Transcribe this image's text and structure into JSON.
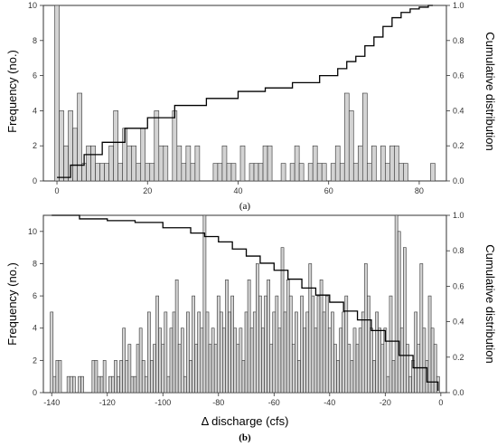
{
  "chart_data": [
    {
      "type": "bar",
      "panel_label": "(a)",
      "xlabel": "",
      "ylabel": "Frequency (no.)",
      "y2label": "Cumulative distribution",
      "xlim": [
        -3,
        86
      ],
      "ylim": [
        0,
        10
      ],
      "y2lim": [
        0,
        1
      ],
      "xticks": [
        0,
        20,
        40,
        60,
        80
      ],
      "yticks": [
        0,
        2,
        4,
        6,
        8,
        10
      ],
      "y2ticks": [
        "0.0",
        "0.2",
        "0.4",
        "0.6",
        "0.8",
        "1.0"
      ],
      "bin_width": 1,
      "x": [
        0,
        1,
        2,
        3,
        4,
        5,
        6,
        7,
        8,
        9,
        10,
        11,
        12,
        13,
        14,
        15,
        16,
        17,
        18,
        19,
        20,
        21,
        22,
        23,
        24,
        25,
        26,
        27,
        28,
        29,
        30,
        31,
        32,
        33,
        34,
        35,
        36,
        37,
        38,
        39,
        40,
        41,
        42,
        43,
        44,
        45,
        46,
        47,
        48,
        49,
        50,
        51,
        52,
        53,
        54,
        55,
        56,
        57,
        58,
        59,
        60,
        61,
        62,
        63,
        64,
        65,
        66,
        67,
        68,
        69,
        70,
        71,
        72,
        73,
        74,
        75,
        76,
        77,
        78,
        79,
        80,
        81,
        82,
        83
      ],
      "values": [
        10,
        4,
        2,
        4,
        3,
        5,
        1,
        2,
        2,
        1,
        1,
        1,
        2,
        4,
        1,
        3,
        2,
        2,
        1,
        3,
        1,
        1,
        4,
        2,
        2,
        0,
        4,
        2,
        1,
        2,
        1,
        2,
        0,
        0,
        0,
        1,
        1,
        2,
        1,
        1,
        0,
        2,
        0,
        1,
        1,
        1,
        2,
        2,
        0,
        0,
        1,
        0,
        1,
        2,
        1,
        0,
        1,
        2,
        1,
        1,
        0,
        1,
        2,
        1,
        5,
        4,
        1,
        2,
        5,
        1,
        2,
        0,
        2,
        1,
        2,
        2,
        1,
        1,
        0,
        0,
        0,
        0,
        0,
        1
      ],
      "cumulative": {
        "x": [
          0,
          3,
          6,
          10,
          15,
          20,
          26,
          33,
          40,
          46,
          52,
          58,
          62,
          64,
          66,
          68,
          70,
          72,
          74,
          76,
          78,
          80,
          82,
          83
        ],
        "y": [
          0.02,
          0.09,
          0.15,
          0.22,
          0.3,
          0.36,
          0.43,
          0.47,
          0.51,
          0.53,
          0.56,
          0.6,
          0.64,
          0.68,
          0.71,
          0.77,
          0.82,
          0.88,
          0.93,
          0.96,
          0.98,
          0.99,
          1.0,
          1.0
        ]
      }
    },
    {
      "type": "bar",
      "panel_label": "(b)",
      "xlabel": "Δ discharge (cfs)",
      "ylabel": "Frequency (no.)",
      "y2label": "Cumulative distribution",
      "xlim": [
        -143,
        2
      ],
      "ylim": [
        0,
        11
      ],
      "y2lim": [
        0,
        1
      ],
      "xticks": [
        -140,
        -120,
        -100,
        -80,
        -60,
        -40,
        -20,
        0
      ],
      "yticks": [
        0,
        2,
        4,
        6,
        8,
        10
      ],
      "y2ticks": [
        "0.0",
        "0.2",
        "0.4",
        "0.6",
        "0.8",
        "1.0"
      ],
      "bin_width": 1,
      "x": [
        -140,
        -139,
        -138,
        -137,
        -136,
        -135,
        -134,
        -133,
        -132,
        -131,
        -130,
        -129,
        -128,
        -127,
        -126,
        -125,
        -124,
        -123,
        -122,
        -121,
        -120,
        -119,
        -118,
        -117,
        -116,
        -115,
        -114,
        -113,
        -112,
        -111,
        -110,
        -109,
        -108,
        -107,
        -106,
        -105,
        -104,
        -103,
        -102,
        -101,
        -100,
        -99,
        -98,
        -97,
        -96,
        -95,
        -94,
        -93,
        -92,
        -91,
        -90,
        -89,
        -88,
        -87,
        -86,
        -85,
        -84,
        -83,
        -82,
        -81,
        -80,
        -79,
        -78,
        -77,
        -76,
        -75,
        -74,
        -73,
        -72,
        -71,
        -70,
        -69,
        -68,
        -67,
        -66,
        -65,
        -64,
        -63,
        -62,
        -61,
        -60,
        -59,
        -58,
        -57,
        -56,
        -55,
        -54,
        -53,
        -52,
        -51,
        -50,
        -49,
        -48,
        -47,
        -46,
        -45,
        -44,
        -43,
        -42,
        -41,
        -40,
        -39,
        -38,
        -37,
        -36,
        -35,
        -34,
        -33,
        -32,
        -31,
        -30,
        -29,
        -28,
        -27,
        -26,
        -25,
        -24,
        -23,
        -22,
        -21,
        -20,
        -19,
        -18,
        -17,
        -16,
        -15,
        -14,
        -13,
        -12,
        -11,
        -10,
        -9,
        -8,
        -7,
        -6,
        -5,
        -4,
        -3,
        -2,
        -1
      ],
      "values": [
        5,
        1,
        2,
        2,
        0,
        0,
        1,
        1,
        1,
        0,
        1,
        1,
        0,
        0,
        0,
        2,
        2,
        1,
        1,
        2,
        0,
        1,
        1,
        2,
        1,
        2,
        4,
        2,
        3,
        1,
        1,
        3,
        4,
        2,
        1,
        5,
        2,
        3,
        6,
        4,
        3,
        5,
        1,
        4,
        5,
        7,
        3,
        4,
        1,
        5,
        2,
        6,
        3,
        5,
        4,
        11,
        5,
        3,
        4,
        3,
        6,
        5,
        4,
        7,
        5,
        6,
        4,
        3,
        4,
        2,
        5,
        7,
        4,
        5,
        8,
        6,
        4,
        6,
        7,
        3,
        5,
        6,
        4,
        9,
        5,
        7,
        6,
        3,
        5,
        2,
        6,
        4,
        5,
        8,
        6,
        4,
        6,
        7,
        5,
        6,
        4,
        5,
        3,
        2,
        4,
        5,
        6,
        3,
        2,
        4,
        3,
        4,
        5,
        8,
        6,
        4,
        2,
        5,
        4,
        3,
        4,
        1,
        6,
        2,
        11,
        10,
        4,
        9,
        3,
        1,
        2,
        5,
        3,
        8,
        4,
        2,
        6,
        4,
        3,
        1
      ],
      "cumulative": {
        "x": [
          -140,
          -130,
          -120,
          -110,
          -100,
          -90,
          -85,
          -80,
          -75,
          -70,
          -65,
          -60,
          -55,
          -50,
          -45,
          -40,
          -35,
          -30,
          -25,
          -20,
          -15,
          -10,
          -5,
          -1
        ],
        "y": [
          1.0,
          0.98,
          0.97,
          0.96,
          0.93,
          0.9,
          0.88,
          0.85,
          0.81,
          0.77,
          0.73,
          0.69,
          0.64,
          0.59,
          0.55,
          0.51,
          0.46,
          0.41,
          0.35,
          0.29,
          0.21,
          0.14,
          0.06,
          0.01
        ]
      }
    }
  ]
}
